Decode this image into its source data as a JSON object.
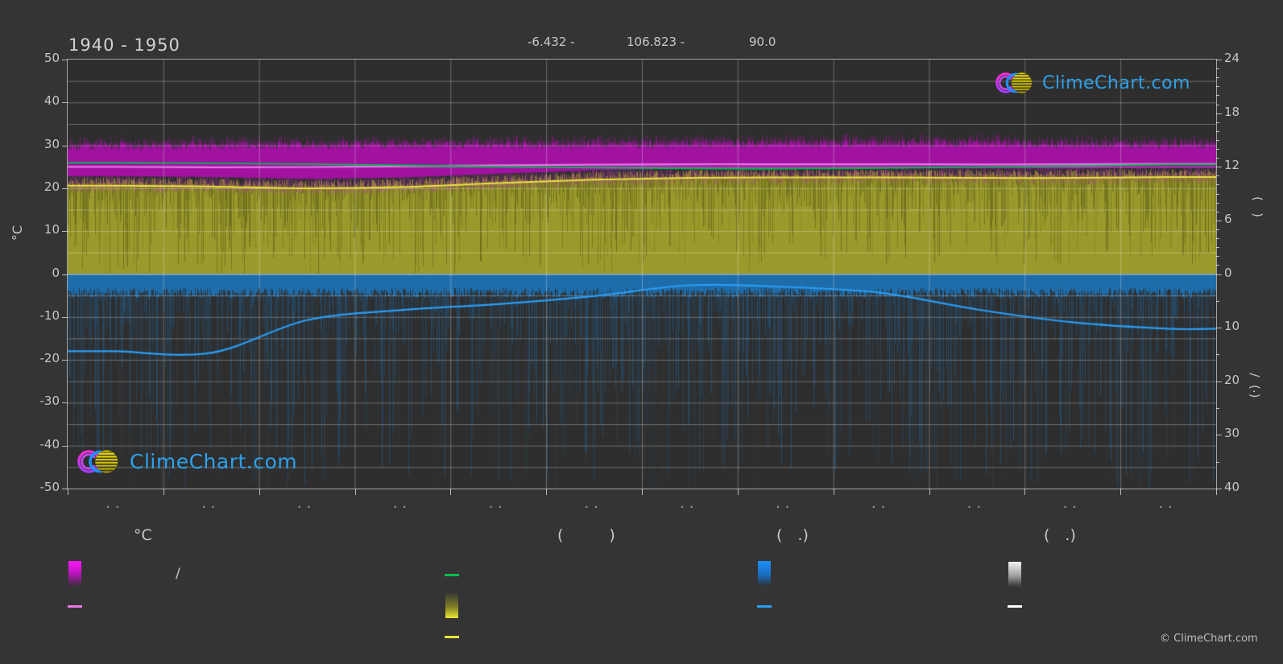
{
  "page": {
    "background": "#343434",
    "plot_background": "#2e2e2e"
  },
  "header": {
    "title": "1940 - 1950",
    "latitude_display": "-6.432 -",
    "longitude_display": "106.823 -",
    "elevation_display": "90.0"
  },
  "branding": {
    "logo_text": "ClimeChart.com",
    "logo_text_color": "#2da0e8",
    "copyright": "© ClimeChart.com"
  },
  "axes": {
    "left": {
      "title": "°C",
      "ticks": [
        "50",
        "40",
        "30",
        "20",
        "10",
        "0",
        "-10",
        "-20",
        "-30",
        "-40",
        "-50"
      ]
    },
    "right_hours": {
      "title_display": "(   )",
      "ticks": [
        "24",
        "18",
        "12",
        "6",
        "0"
      ]
    },
    "right_mm": {
      "title_display": "(·)  /",
      "ticks": [
        "10",
        "20",
        "30",
        "40"
      ]
    },
    "bottom": {
      "month_tick_display": "..",
      "month_count": 12
    }
  },
  "legend": {
    "temp_heading": "°C",
    "temp_max_min_label": "/",
    "hours_heading": "(   )",
    "precip_heading": "(  .)",
    "precip2_heading": "(  .)"
  },
  "chart_data": {
    "type": "area",
    "title": "1940 - 1950",
    "location": {
      "latitude": -6.432,
      "longitude": 106.823,
      "elevation_m": 90.0
    },
    "x_months": [
      1,
      2,
      3,
      4,
      5,
      6,
      7,
      8,
      9,
      10,
      11,
      12
    ],
    "x_tick_labels_display": [
      "..",
      "..",
      "..",
      "..",
      "..",
      "..",
      "..",
      "..",
      "..",
      "..",
      "..",
      ".."
    ],
    "ylim_celsius": [
      -50,
      50
    ],
    "grid_step_celsius": 5,
    "right_axis_hours_range": [
      0,
      24
    ],
    "right_axis_mm_range": [
      0,
      40
    ],
    "legend_position": "bottom",
    "series": [
      {
        "name": "daily-max-temp-band",
        "type": "noise-band",
        "unit": "°C",
        "color": "#a112a1",
        "top_mean_c": [
          29.7,
          29.8,
          29.9,
          30.0,
          30.0,
          30.0,
          30.1,
          30.2,
          30.3,
          30.3,
          30.1,
          29.9
        ],
        "noise_amplitude_c": 1.8,
        "solid_down_to_offset_c": 2.2
      },
      {
        "name": "daily-min-temp-band",
        "type": "noise-band",
        "unit": "°C",
        "color": "#9a9a2c",
        "top_mean_c": [
          20.6,
          20.4,
          20.0,
          20.3,
          21.2,
          22.0,
          22.4,
          22.5,
          22.5,
          22.4,
          22.4,
          22.6
        ],
        "noise_amplitude_c": 2.4,
        "fill_down_to_c": 0,
        "overlay_color": "#cd3cbe"
      },
      {
        "name": "daily-precipitation-band",
        "type": "noise-band",
        "unit": "mm",
        "color": "#1f6fad",
        "solid_depth_mm": 4.0,
        "noise_max_mm": 46
      },
      {
        "name": "mean-temp-line",
        "type": "line",
        "unit": "°C",
        "color": "#e678e6",
        "values": [
          25.0,
          24.9,
          24.95,
          25.15,
          25.35,
          25.5,
          25.6,
          25.6,
          25.6,
          25.55,
          25.6,
          25.7
        ]
      },
      {
        "name": "min-temp-line",
        "type": "line",
        "unit": "°C",
        "color": "#e6e63c",
        "values": [
          20.6,
          20.4,
          20.0,
          20.3,
          21.2,
          22.0,
          22.4,
          22.5,
          22.5,
          22.4,
          22.4,
          22.6
        ]
      },
      {
        "name": "daylight-hours-line",
        "type": "line",
        "unit": "h",
        "color": "#00bf4d",
        "values": [
          12.45,
          12.4,
          12.3,
          12.16,
          12.02,
          11.89,
          11.8,
          11.78,
          11.85,
          11.97,
          12.1,
          12.25
        ]
      },
      {
        "name": "precipitation-line",
        "type": "line",
        "unit": "mm",
        "color": "#2a9df4",
        "values": [
          14.4,
          14.7,
          8.6,
          6.7,
          5.6,
          4.1,
          2.1,
          2.4,
          3.5,
          6.6,
          9.0,
          10.2
        ]
      }
    ]
  }
}
